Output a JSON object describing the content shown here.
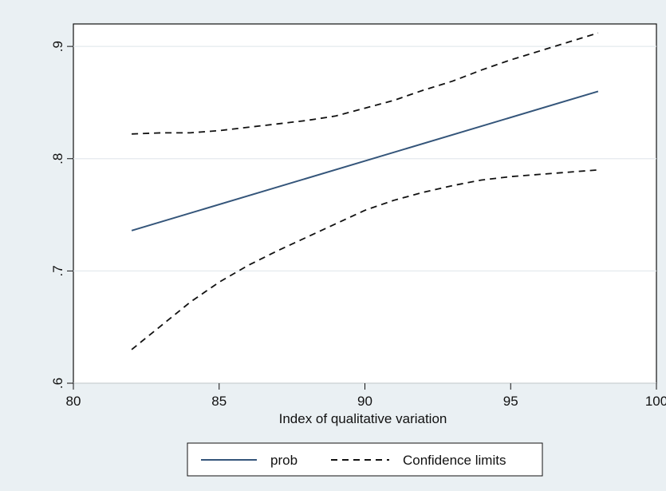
{
  "chart_data": {
    "type": "line",
    "title": "",
    "xlabel": "Index of qualitative variation",
    "ylabel": "",
    "xlim": [
      80,
      100
    ],
    "ylim": [
      0.6,
      0.92
    ],
    "x_ticks": [
      {
        "value": 80,
        "label": "80"
      },
      {
        "value": 85,
        "label": "85"
      },
      {
        "value": 90,
        "label": "90"
      },
      {
        "value": 95,
        "label": "95"
      },
      {
        "value": 100,
        "label": "100"
      }
    ],
    "y_ticks": [
      {
        "value": 0.6,
        "label": ".6"
      },
      {
        "value": 0.7,
        "label": ".7"
      },
      {
        "value": 0.8,
        "label": ".8"
      },
      {
        "value": 0.9,
        "label": ".9"
      }
    ],
    "grid": true,
    "legend_position": "bottom",
    "series": [
      {
        "name": "prob",
        "style": "solid",
        "color": "#34557a",
        "x": [
          82,
          98
        ],
        "y": [
          0.736,
          0.86
        ]
      },
      {
        "name": "Confidence limits",
        "style": "dashed",
        "color": "#111111",
        "x": [
          82,
          83,
          84,
          85,
          86,
          87,
          88,
          89,
          90,
          91,
          92,
          93,
          94,
          95,
          96,
          97,
          98
        ],
        "y": [
          0.822,
          0.823,
          0.823,
          0.825,
          0.828,
          0.831,
          0.834,
          0.838,
          0.845,
          0.852,
          0.861,
          0.869,
          0.879,
          0.888,
          0.896,
          0.904,
          0.912
        ]
      },
      {
        "name": "",
        "style": "dashed",
        "color": "#111111",
        "x": [
          82,
          83,
          84,
          85,
          86,
          87,
          88,
          89,
          90,
          91,
          92,
          93,
          94,
          95,
          96,
          97,
          98
        ],
        "y": [
          0.63,
          0.651,
          0.672,
          0.69,
          0.705,
          0.718,
          0.73,
          0.742,
          0.754,
          0.763,
          0.77,
          0.776,
          0.781,
          0.784,
          0.786,
          0.788,
          0.79
        ]
      }
    ]
  }
}
